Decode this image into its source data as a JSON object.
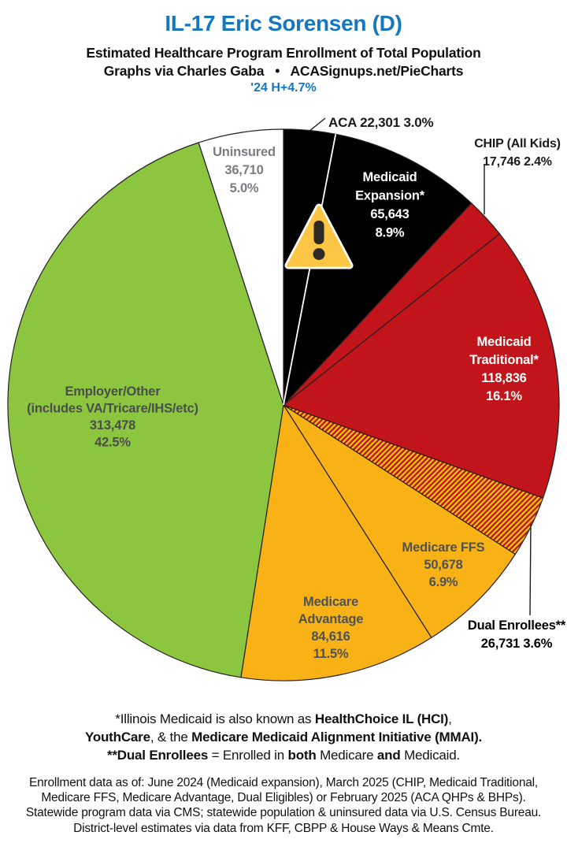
{
  "header": {
    "title": "IL-17 Eric Sorensen (D)",
    "subtitle1": "Estimated Healthcare Program Enrollment of Total Population",
    "subtitle2": "Graphs via Charles Gaba   •   ACASignups.net/PieCharts",
    "change_note": "'24 H+4.7%",
    "title_color": "#1577BD"
  },
  "chart_data": {
    "type": "pie",
    "title": "Estimated Healthcare Program Enrollment of Total Population",
    "direction": "clockwise",
    "start_angle_deg": 0,
    "slices": [
      {
        "id": "aca",
        "label": "ACA",
        "value": 22301,
        "value_str": "22,301",
        "pct": 3.0,
        "pct_str": "3.0%",
        "color": "#000000",
        "label_lines": [
          "ACA 22,301 3.0%"
        ]
      },
      {
        "id": "medicaid-expansion",
        "label": "Medicaid Expansion*",
        "value": 65643,
        "value_str": "65,643",
        "pct": 8.9,
        "pct_str": "8.9%",
        "color": "#000000",
        "label_lines": [
          "Medicaid",
          "Expansion*",
          "65,643",
          "8.9%"
        ]
      },
      {
        "id": "chip",
        "label": "CHIP (All Kids)",
        "value": 17746,
        "value_str": "17,746",
        "pct": 2.4,
        "pct_str": "2.4%",
        "color": "#C1151B",
        "label_lines": [
          "CHIP (All Kids)",
          "17,746 2.4%"
        ]
      },
      {
        "id": "medicaid-traditional",
        "label": "Medicaid Traditional*",
        "value": 118836,
        "value_str": "118,836",
        "pct": 16.1,
        "pct_str": "16.1%",
        "color": "#C1151B",
        "label_lines": [
          "Medicaid",
          "Traditional*",
          "118,836",
          "16.1%"
        ]
      },
      {
        "id": "dual-enrollees",
        "label": "Dual Enrollees**",
        "value": 26731,
        "value_str": "26,731",
        "pct": 3.6,
        "pct_str": "3.6%",
        "color": "hatch",
        "label_lines": [
          "Dual Enrollees**",
          "26,731 3.6%"
        ]
      },
      {
        "id": "medicare-ffs",
        "label": "Medicare FFS",
        "value": 50678,
        "value_str": "50,678",
        "pct": 6.9,
        "pct_str": "6.9%",
        "color": "#F9B216",
        "label_lines": [
          "Medicare FFS",
          "50,678",
          "6.9%"
        ]
      },
      {
        "id": "medicare-advantage",
        "label": "Medicare Advantage",
        "value": 84616,
        "value_str": "84,616",
        "pct": 11.5,
        "pct_str": "11.5%",
        "color": "#F9B216",
        "label_lines": [
          "Medicare",
          "Advantage",
          "84,616",
          "11.5%"
        ]
      },
      {
        "id": "employer-other",
        "label": "Employer/Other (includes VA/Tricare/IHS/etc)",
        "value": 313478,
        "value_str": "313,478",
        "pct": 42.5,
        "pct_str": "42.5%",
        "color": "#8CC63E",
        "label_lines": [
          "Employer/Other",
          "(includes VA/Tricare/IHS/etc)",
          "313,478",
          "42.5%"
        ]
      },
      {
        "id": "uninsured",
        "label": "Uninsured",
        "value": 36710,
        "value_str": "36,710",
        "pct": 5.0,
        "pct_str": "5.0%",
        "color": "#FFFFFF",
        "label_lines": [
          "Uninsured",
          "36,710",
          "5.0%"
        ]
      }
    ],
    "hatch_colors": {
      "base": "#C1151B",
      "stripe": "#FFD400"
    },
    "icons": {
      "warning": "warning-triangle-icon"
    }
  },
  "footnotes": {
    "lines": [
      [
        {
          "t": "*Illinois Medicaid is also known as ",
          "b": 0
        },
        {
          "t": "HealthChoice IL (HCI)",
          "b": 1
        },
        {
          "t": ",",
          "b": 0
        }
      ],
      [
        {
          "t": "YouthCare",
          "b": 1
        },
        {
          "t": ", & the ",
          "b": 0
        },
        {
          "t": "Medicare Medicaid Alignment Initiative (MMAI).",
          "b": 1
        }
      ],
      [
        {
          "t": "**Dual Enrollees",
          "b": 1
        },
        {
          "t": " = Enrolled in ",
          "b": 0
        },
        {
          "t": "both",
          "b": 1
        },
        {
          "t": " Medicare ",
          "b": 0
        },
        {
          "t": "and",
          "b": 1
        },
        {
          "t": " Medicaid.",
          "b": 0
        }
      ]
    ]
  },
  "source_note": {
    "lines": [
      "Enrollment data as of: June 2024 (Medicaid expansion), March 2025 (CHIP, Medicaid Traditional,",
      "Medicare FFS, Medicare Advantage, Dual Eligibles) or February 2025 (ACA QHPs & BHPs).",
      "Statewide program data via CMS; statewide population & uninsured data via U.S. Census Bureau.",
      "District-level estimates via data from KFF, CBPP & House Ways & Means Cmte."
    ]
  }
}
